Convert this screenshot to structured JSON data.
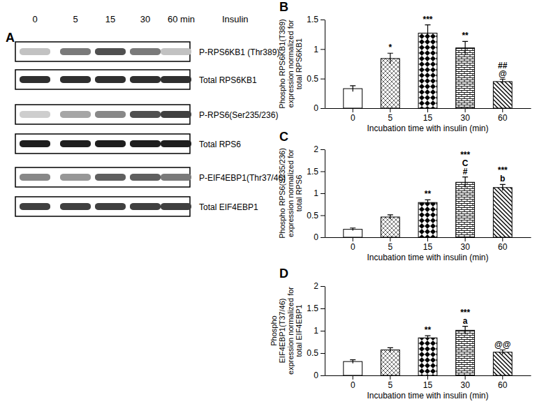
{
  "panel_a": {
    "label": "A",
    "lanes": [
      "0",
      "5",
      "15",
      "30",
      "60 min"
    ],
    "treatment": "Insulin",
    "blots": [
      {
        "label": "P-RPS6KB1 (Thr389)",
        "bands": [
          0.35,
          0.6,
          0.75,
          0.6,
          0.35
        ]
      },
      {
        "label": "Total RPS6KB1",
        "bands": [
          0.85,
          0.85,
          0.85,
          0.85,
          0.85
        ]
      },
      {
        "label": "P-RPS6(Ser235/236)",
        "bands": [
          0.3,
          0.45,
          0.55,
          0.75,
          0.8
        ]
      },
      {
        "label": "Total RPS6",
        "bands": [
          0.9,
          0.9,
          0.9,
          0.9,
          0.9
        ]
      },
      {
        "label": "P-EIF4EBP1(Thr37/46)",
        "bands": [
          0.55,
          0.5,
          0.7,
          0.7,
          0.6
        ]
      },
      {
        "label": "Total EIF4EBP1",
        "bands": [
          0.8,
          0.8,
          0.8,
          0.8,
          0.8
        ]
      }
    ]
  },
  "chart_data": [
    {
      "type": "bar",
      "panel_label": "B",
      "categories": [
        "0",
        "5",
        "15",
        "30",
        "60"
      ],
      "values": [
        0.33,
        0.84,
        1.27,
        1.02,
        0.45
      ],
      "errors": [
        0.05,
        0.09,
        0.14,
        0.11,
        0.04
      ],
      "annotations": [
        [],
        [
          "*"
        ],
        [
          "***"
        ],
        [
          "**"
        ],
        [
          "##",
          "@"
        ]
      ],
      "x_label": "Incubation time with insulin (min)",
      "y_label": [
        "Phospho RPS6KB1(T389)",
        "expression normalized for",
        "total RPS6KB1"
      ],
      "ylim": [
        0,
        1.5
      ],
      "yticks": [
        0,
        0.5,
        1,
        1.5
      ],
      "color": "#000000"
    },
    {
      "type": "bar",
      "panel_label": "C",
      "categories": [
        "0",
        "5",
        "15",
        "30",
        "60"
      ],
      "values": [
        0.18,
        0.46,
        0.79,
        1.25,
        1.13
      ],
      "errors": [
        0.03,
        0.05,
        0.06,
        0.12,
        0.07
      ],
      "annotations": [
        [],
        [],
        [
          "**"
        ],
        [
          "***",
          "C",
          "#"
        ],
        [
          "***",
          "b"
        ]
      ],
      "x_label": "Incubation time with insulin (min)",
      "y_label": [
        "Phospho RPS6(S235/236)",
        "expression normalized for",
        "total RPS6"
      ],
      "ylim": [
        0,
        2
      ],
      "yticks": [
        0,
        0.5,
        1,
        1.5,
        2
      ],
      "color": "#000000"
    },
    {
      "type": "bar",
      "panel_label": "D",
      "categories": [
        "0",
        "5",
        "15",
        "30",
        "60"
      ],
      "values": [
        0.31,
        0.57,
        0.84,
        1.01,
        0.52
      ],
      "errors": [
        0.04,
        0.05,
        0.05,
        0.09,
        0.05
      ],
      "annotations": [
        [],
        [],
        [
          "**"
        ],
        [
          "***",
          "a"
        ],
        [
          "@@"
        ]
      ],
      "x_label": "Incubation time with insulin (min)",
      "y_label": [
        "Phospho",
        "EIF4EBP1(T37/46)",
        "expression normalized for",
        "total EIF4EBP1"
      ],
      "ylim": [
        0,
        2
      ],
      "yticks": [
        0,
        0.5,
        1,
        1.5,
        2
      ],
      "color": "#000000"
    }
  ]
}
